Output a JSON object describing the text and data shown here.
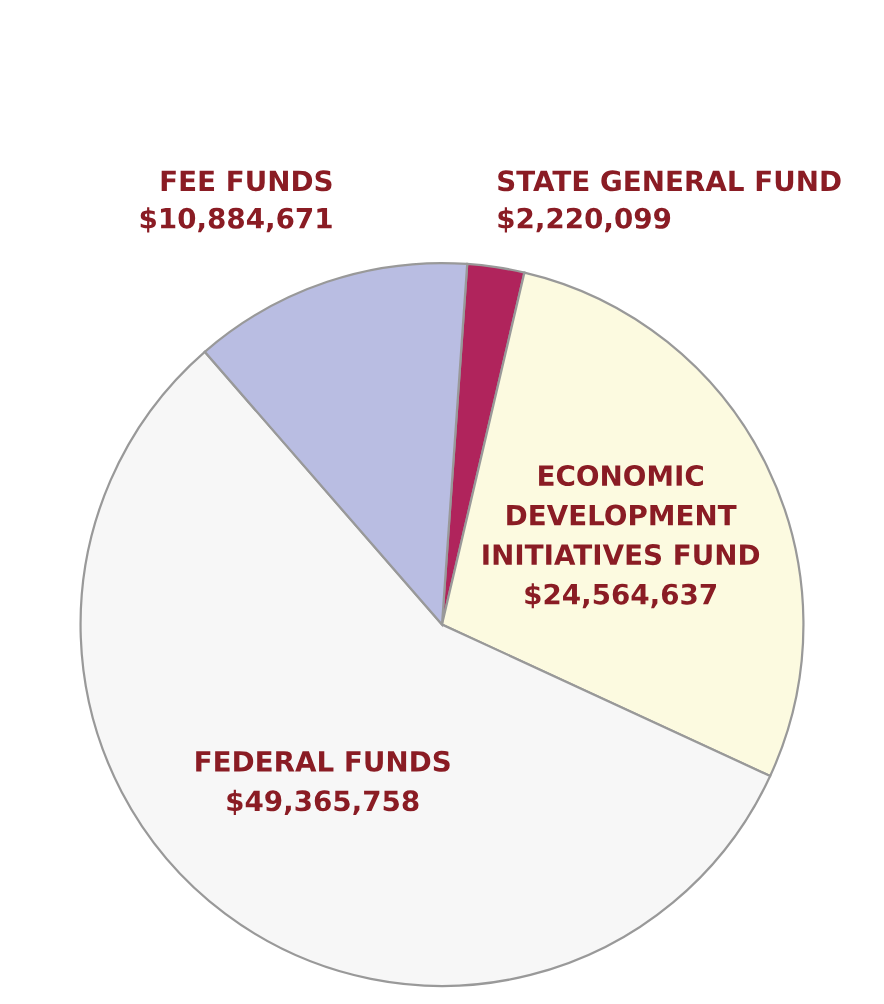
{
  "chart_data": {
    "type": "pie",
    "categories": [
      "STATE GENERAL FUND",
      "ECONOMIC DEVELOPMENT INITIATIVES FUND",
      "FEDERAL FUNDS",
      "FEE FUNDS"
    ],
    "values": [
      2220099,
      24564637,
      49365758,
      10884671
    ],
    "value_labels": [
      "$2,220,099",
      "$24,564,637",
      "$49,365,758",
      "$10,884,671"
    ],
    "colors": [
      "#b0245c",
      "#fcfae0",
      "#f7f7f7",
      "#b9bde2"
    ]
  }
}
